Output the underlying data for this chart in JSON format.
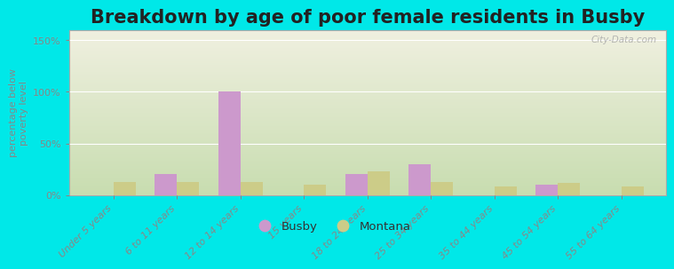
{
  "title": "Breakdown by age of poor female residents in Busby",
  "ylabel": "percentage below\npoverty level",
  "categories": [
    "Under 5 years",
    "6 to 11 years",
    "12 to 14 years",
    "15 years",
    "18 to 24 years",
    "25 to 34 years",
    "35 to 44 years",
    "45 to 54 years",
    "55 to 64 years"
  ],
  "busby_values": [
    0,
    20,
    100,
    0,
    20,
    30,
    0,
    10,
    0
  ],
  "montana_values": [
    13,
    13,
    13,
    10,
    23,
    13,
    8,
    12,
    8
  ],
  "busby_color": "#cc99cc",
  "montana_color": "#cccc88",
  "background_color": "#00e8e8",
  "plot_bg_top": "#f0f0e0",
  "plot_bg_bottom": "#c8ddb0",
  "ylim": [
    0,
    160
  ],
  "yticks": [
    0,
    50,
    100,
    150
  ],
  "ytick_labels": [
    "0%",
    "50%",
    "100%",
    "150%"
  ],
  "bar_width": 0.35,
  "title_fontsize": 15,
  "axis_label_fontsize": 8,
  "tick_fontsize": 8,
  "watermark": "City-Data.com",
  "legend_labels": [
    "Busby",
    "Montana"
  ]
}
